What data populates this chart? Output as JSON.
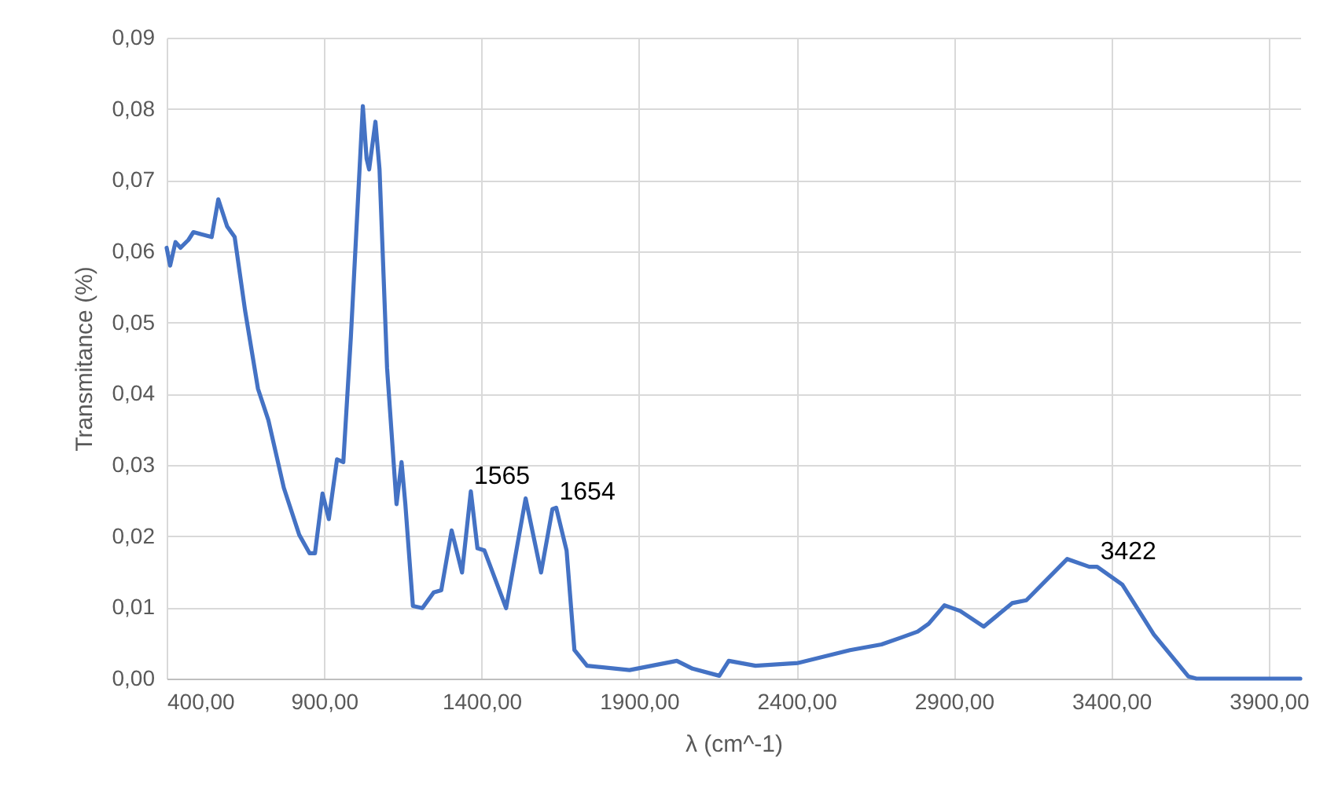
{
  "chart_data": {
    "type": "line",
    "xlabel": "λ (cm^-1)",
    "ylabel": "Transmitance (%)",
    "x": [
      400,
      411,
      428,
      444,
      469,
      485,
      510,
      543,
      564,
      592,
      616,
      649,
      690,
      723,
      772,
      821,
      854,
      871,
      895,
      915,
      941,
      961,
      985,
      1023,
      1035,
      1043,
      1063,
      1076,
      1100,
      1130,
      1146,
      1158,
      1182,
      1212,
      1248,
      1272,
      1305,
      1338,
      1366,
      1387,
      1409,
      1478,
      1540,
      1589,
      1625,
      1637,
      1670,
      1695,
      1735,
      1870,
      2020,
      2070,
      2155,
      2185,
      2270,
      2405,
      2570,
      2670,
      2735,
      2785,
      2820,
      2870,
      2920,
      2995,
      3085,
      3130,
      3260,
      3330,
      3355,
      3435,
      3535,
      3645,
      3670,
      4000
    ],
    "series": [
      {
        "color": "#4472c4",
        "values": [
          0.0605,
          0.058,
          0.0613,
          0.0605,
          0.0616,
          0.0627,
          0.0624,
          0.062,
          0.0673,
          0.0635,
          0.062,
          0.0517,
          0.0407,
          0.0363,
          0.0268,
          0.0202,
          0.0176,
          0.0176,
          0.026,
          0.0224,
          0.0308,
          0.0304,
          0.048,
          0.0804,
          0.073,
          0.0715,
          0.0782,
          0.0715,
          0.0436,
          0.0245,
          0.0304,
          0.0245,
          0.0102,
          0.0099,
          0.0121,
          0.0124,
          0.0208,
          0.0149,
          0.0263,
          0.0183,
          0.018,
          0.0099,
          0.0253,
          0.0149,
          0.0238,
          0.024,
          0.018,
          0.004,
          0.0018,
          0.0012,
          0.0025,
          0.0014,
          0.0004,
          0.0025,
          0.0018,
          0.0022,
          0.004,
          0.0048,
          0.0058,
          0.0066,
          0.0077,
          0.0103,
          0.0095,
          0.0073,
          0.0106,
          0.011,
          0.0168,
          0.0157,
          0.0157,
          0.0132,
          0.0062,
          0.0003,
          0,
          0
        ]
      }
    ],
    "xlim": [
      400,
      4000
    ],
    "xticks": [
      {
        "value": 400,
        "label": "400,00"
      },
      {
        "value": 900,
        "label": "900,00"
      },
      {
        "value": 1400,
        "label": "1400,00"
      },
      {
        "value": 1900,
        "label": "1900,00"
      },
      {
        "value": 2400,
        "label": "2400,00"
      },
      {
        "value": 2900,
        "label": "2900,00"
      },
      {
        "value": 3400,
        "label": "3400,00"
      },
      {
        "value": 3900,
        "label": "3900,00"
      }
    ],
    "ylim": [
      0,
      0.09
    ],
    "yticks": [
      {
        "value": 0,
        "label": "0,00"
      },
      {
        "value": 0.01,
        "label": "0,01"
      },
      {
        "value": 0.02,
        "label": "0,02"
      },
      {
        "value": 0.03,
        "label": "0,03"
      },
      {
        "value": 0.04,
        "label": "0,04"
      },
      {
        "value": 0.05,
        "label": "0,05"
      },
      {
        "value": 0.06,
        "label": "0,06"
      },
      {
        "value": 0.07,
        "label": "0,07"
      },
      {
        "value": 0.08,
        "label": "0,08"
      },
      {
        "value": 0.09,
        "label": "0,09"
      }
    ],
    "annotations": [
      {
        "text": "1565",
        "x": 1366,
        "y": 0.0263
      },
      {
        "text": "1654",
        "x": 1637,
        "y": 0.024
      },
      {
        "text": "3422",
        "x": 3355,
        "y": 0.0157
      }
    ],
    "grid": true,
    "marker": "none",
    "line_style": "solid"
  }
}
